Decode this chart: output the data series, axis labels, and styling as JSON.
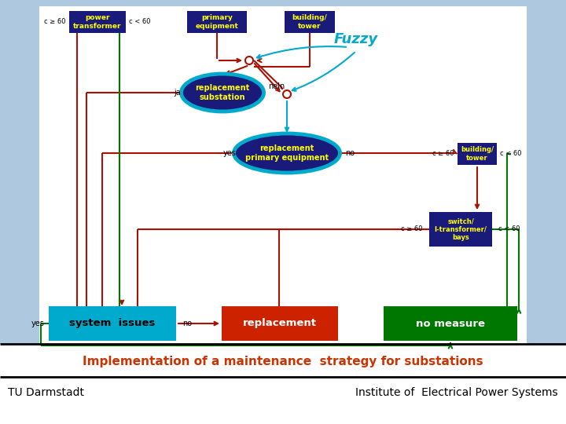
{
  "title": "Implementation of a maintenance  strategy for substations",
  "footer_left": "TU Darmstadt",
  "footer_right": "Institute of  Electrical Power Systems",
  "title_color": "#cc3300",
  "bg_color": "#aec8e0",
  "diagram_bg": "#ffffff",
  "box_dark_blue": "#1a1a7a",
  "box_cyan": "#00aacc",
  "box_red": "#cc2200",
  "box_green": "#007700",
  "text_yellow": "#ffff00",
  "text_white": "#ffffff",
  "arrow_red": "#aa1100",
  "arrow_green": "#007700",
  "arrow_cyan": "#00aacc",
  "ellipse_cyan": "#00bbdd",
  "label_color": "#000000"
}
